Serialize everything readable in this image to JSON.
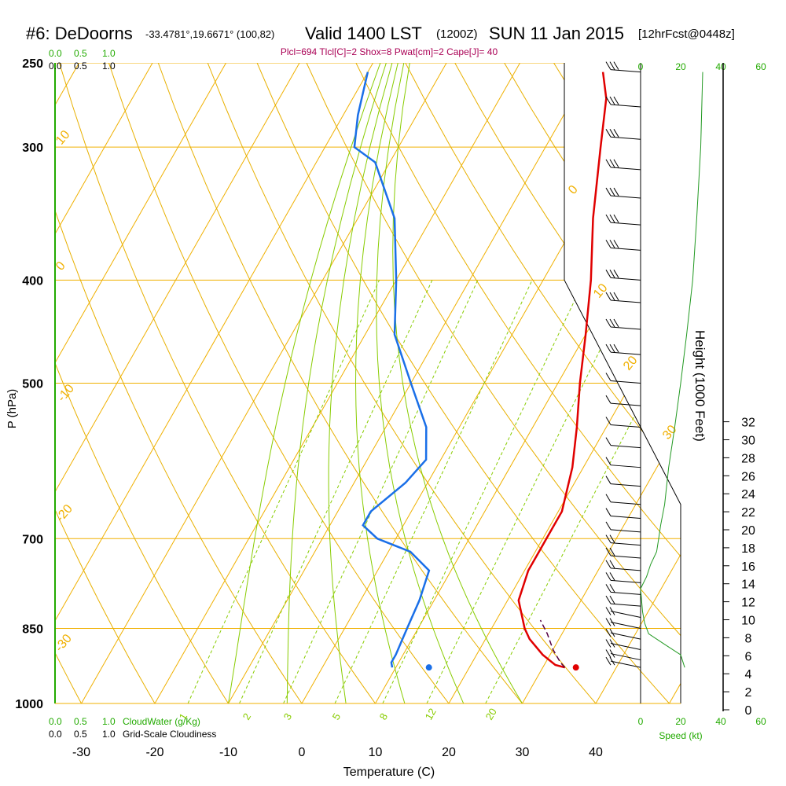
{
  "header": {
    "station": "#6: DeDoorns",
    "coords": "-33.4781°,19.6671° (100,82)",
    "valid": "Valid 1400 LST",
    "zulu": "(1200Z)",
    "date": "SUN 11 Jan 2015",
    "fcst": "[12hrFcst@0448z]",
    "indices": "Plcl=694 Tlcl[C]=2 Shox=8 Pwat[cm]=2 Cape[J]= 40"
  },
  "colors": {
    "temperature": "#e00000",
    "dewpoint": "#1a6fe8",
    "isotherm": "#f0b000",
    "dry_adiabat": "#e8b000",
    "moist_adiabat": "#88cc00",
    "mixing_ratio": "#88cc00",
    "green_text": "#22aa00",
    "header_magenta": "#aa0055",
    "parcel": "#550044"
  },
  "chart_data": {
    "type": "line",
    "subtype": "skew-t log-p sounding",
    "xlabel": "Temperature (C)",
    "ylabel": "P (hPa)",
    "right_axis_label": "Height (1000 Feet)",
    "x_ticks": [
      "-30",
      "-20",
      "-10",
      "0",
      "10",
      "20",
      "30",
      "40"
    ],
    "p_ticks": [
      {
        "p": 250,
        "label": "250"
      },
      {
        "p": 300,
        "label": "300"
      },
      {
        "p": 400,
        "label": "400"
      },
      {
        "p": 500,
        "label": "500"
      },
      {
        "p": 700,
        "label": "700"
      },
      {
        "p": 850,
        "label": "850"
      },
      {
        "p": 1000,
        "label": "1000"
      }
    ],
    "height_ticks": [
      "0",
      "2",
      "4",
      "6",
      "8",
      "10",
      "12",
      "14",
      "16",
      "18",
      "20",
      "22",
      "24",
      "26",
      "28",
      "30",
      "32"
    ],
    "temperature_series": {
      "name": "Temperature",
      "points": [
        [
          925,
          33
        ],
        [
          920,
          31.5
        ],
        [
          900,
          29
        ],
        [
          870,
          26
        ],
        [
          850,
          24.5
        ],
        [
          800,
          21.5
        ],
        [
          750,
          20.5
        ],
        [
          720,
          20.5
        ],
        [
          700,
          20.5
        ],
        [
          660,
          20.5
        ],
        [
          600,
          18.5
        ],
        [
          550,
          16
        ],
        [
          500,
          13
        ],
        [
          450,
          10
        ],
        [
          400,
          6.5
        ],
        [
          350,
          2
        ],
        [
          300,
          -2.5
        ],
        [
          270,
          -5.5
        ],
        [
          255,
          -8
        ]
      ]
    },
    "dewpoint_series": {
      "name": "Dewpoint",
      "points": [
        [
          925,
          9.5
        ],
        [
          915,
          9
        ],
        [
          900,
          9
        ],
        [
          850,
          8.5
        ],
        [
          800,
          8
        ],
        [
          750,
          7
        ],
        [
          720,
          3
        ],
        [
          700,
          -2.5
        ],
        [
          680,
          -5.5
        ],
        [
          660,
          -5.5
        ],
        [
          620,
          -3
        ],
        [
          590,
          -2
        ],
        [
          550,
          -4.5
        ],
        [
          500,
          -10
        ],
        [
          450,
          -16
        ],
        [
          400,
          -20
        ],
        [
          350,
          -25
        ],
        [
          310,
          -32
        ],
        [
          300,
          -36
        ],
        [
          280,
          -38
        ],
        [
          255,
          -40
        ]
      ]
    },
    "parcel_series": {
      "name": "Parcel",
      "points": [
        [
          925,
          33
        ],
        [
          915,
          32
        ],
        [
          890,
          30
        ],
        [
          860,
          28
        ],
        [
          835,
          26
        ]
      ]
    },
    "surface_markers": [
      {
        "name": "Surface T",
        "t": 34.5,
        "p": 925
      },
      {
        "name": "Surface Td",
        "t": 14.5,
        "p": 925
      }
    ],
    "isotherm_labels": [
      "0",
      "10",
      "20",
      "30",
      "10",
      "0",
      "-10",
      "-20",
      "-30"
    ],
    "mixing_ratio_labels": [
      "1",
      "2",
      "3",
      "5",
      "8",
      "12",
      "20"
    ],
    "cloud_scales": {
      "top_green": [
        "0.0",
        "0.5",
        "1.0"
      ],
      "top_black": [
        "0.0",
        "0.5",
        "1.0"
      ],
      "bottom_green": [
        "0.0",
        "0.5",
        "1.0"
      ],
      "bottom_black": [
        "0.0",
        "0.5",
        "1.0"
      ],
      "cloudwater_label": "CloudWater (g/Kg)",
      "cloudiness_label": "Grid-Scale Cloudiness"
    },
    "wind_speed": {
      "label": "Speed (kt)",
      "top_ticks": [
        "0",
        "20",
        "40",
        "60"
      ],
      "bottom_ticks": [
        "0",
        "20",
        "40",
        "60"
      ],
      "profile": [
        [
          925,
          22
        ],
        [
          900,
          20
        ],
        [
          880,
          12
        ],
        [
          860,
          4
        ],
        [
          840,
          2
        ],
        [
          820,
          1
        ],
        [
          780,
          0
        ],
        [
          760,
          3
        ],
        [
          740,
          5
        ],
        [
          720,
          8
        ],
        [
          700,
          9
        ],
        [
          680,
          10
        ],
        [
          650,
          12
        ],
        [
          600,
          14
        ],
        [
          550,
          17
        ],
        [
          500,
          20
        ],
        [
          450,
          23
        ],
        [
          400,
          26
        ],
        [
          350,
          28
        ],
        [
          300,
          30
        ],
        [
          255,
          31
        ]
      ]
    }
  }
}
